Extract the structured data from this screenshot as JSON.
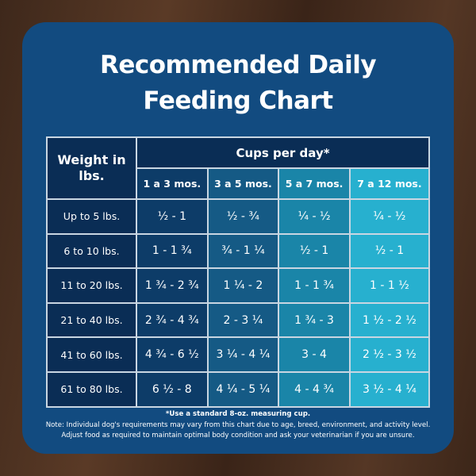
{
  "title": {
    "line1": "Recommended Daily",
    "line2": "Feeding Chart"
  },
  "table": {
    "weight_header": "Weight in lbs.",
    "group_header": "Cups per day*",
    "columns": [
      "1 a 3 mos.",
      "3 a 5 mos.",
      "5 a 7 mos.",
      "7 a 12 mos."
    ],
    "rows": [
      {
        "weight": "Up to 5 lbs.",
        "values": [
          "½ - 1",
          "½ - ¾",
          "¼ - ½",
          "¼ - ½"
        ]
      },
      {
        "weight": "6 to 10 lbs.",
        "values": [
          "1 - 1 ¾",
          "¾ - 1 ¼",
          "½ - 1",
          "½ - 1"
        ]
      },
      {
        "weight": "11 to 20 lbs.",
        "values": [
          "1 ¾ - 2 ¾",
          "1 ¼ - 2",
          "1 - 1 ¾",
          "1 - 1 ½"
        ]
      },
      {
        "weight": "21 to 40 lbs.",
        "values": [
          "2 ¾ - 4 ¾",
          "2 - 3 ¼",
          "1 ¾ - 3",
          "1 ½ - 2 ½"
        ]
      },
      {
        "weight": "41 to 60 lbs.",
        "values": [
          "4 ¾ - 6 ½",
          "3 ¼ - 4 ¼",
          "3 - 4",
          "2 ½ - 3 ½"
        ]
      },
      {
        "weight": "61 to 80 lbs.",
        "values": [
          "6 ½ - 8",
          "4 ¼ - 5 ¼",
          "4 - 4 ¾",
          "3 ½ - 4 ¼"
        ]
      }
    ]
  },
  "notes": {
    "footnote": "*Use a standard 8-oz. measuring cup.",
    "line1": "Note: Individual dog's requirements may vary from this chart due to age, breed, environment, and activity level.",
    "line2": "Adjust food as required to maintain optimal body condition and ask your veterinarian if you are unsure."
  },
  "colors": {
    "card": "#124b80",
    "col1": "#0d3c68",
    "col2": "#155a85",
    "col3": "#1a85a8",
    "col4": "#27b0cf"
  }
}
